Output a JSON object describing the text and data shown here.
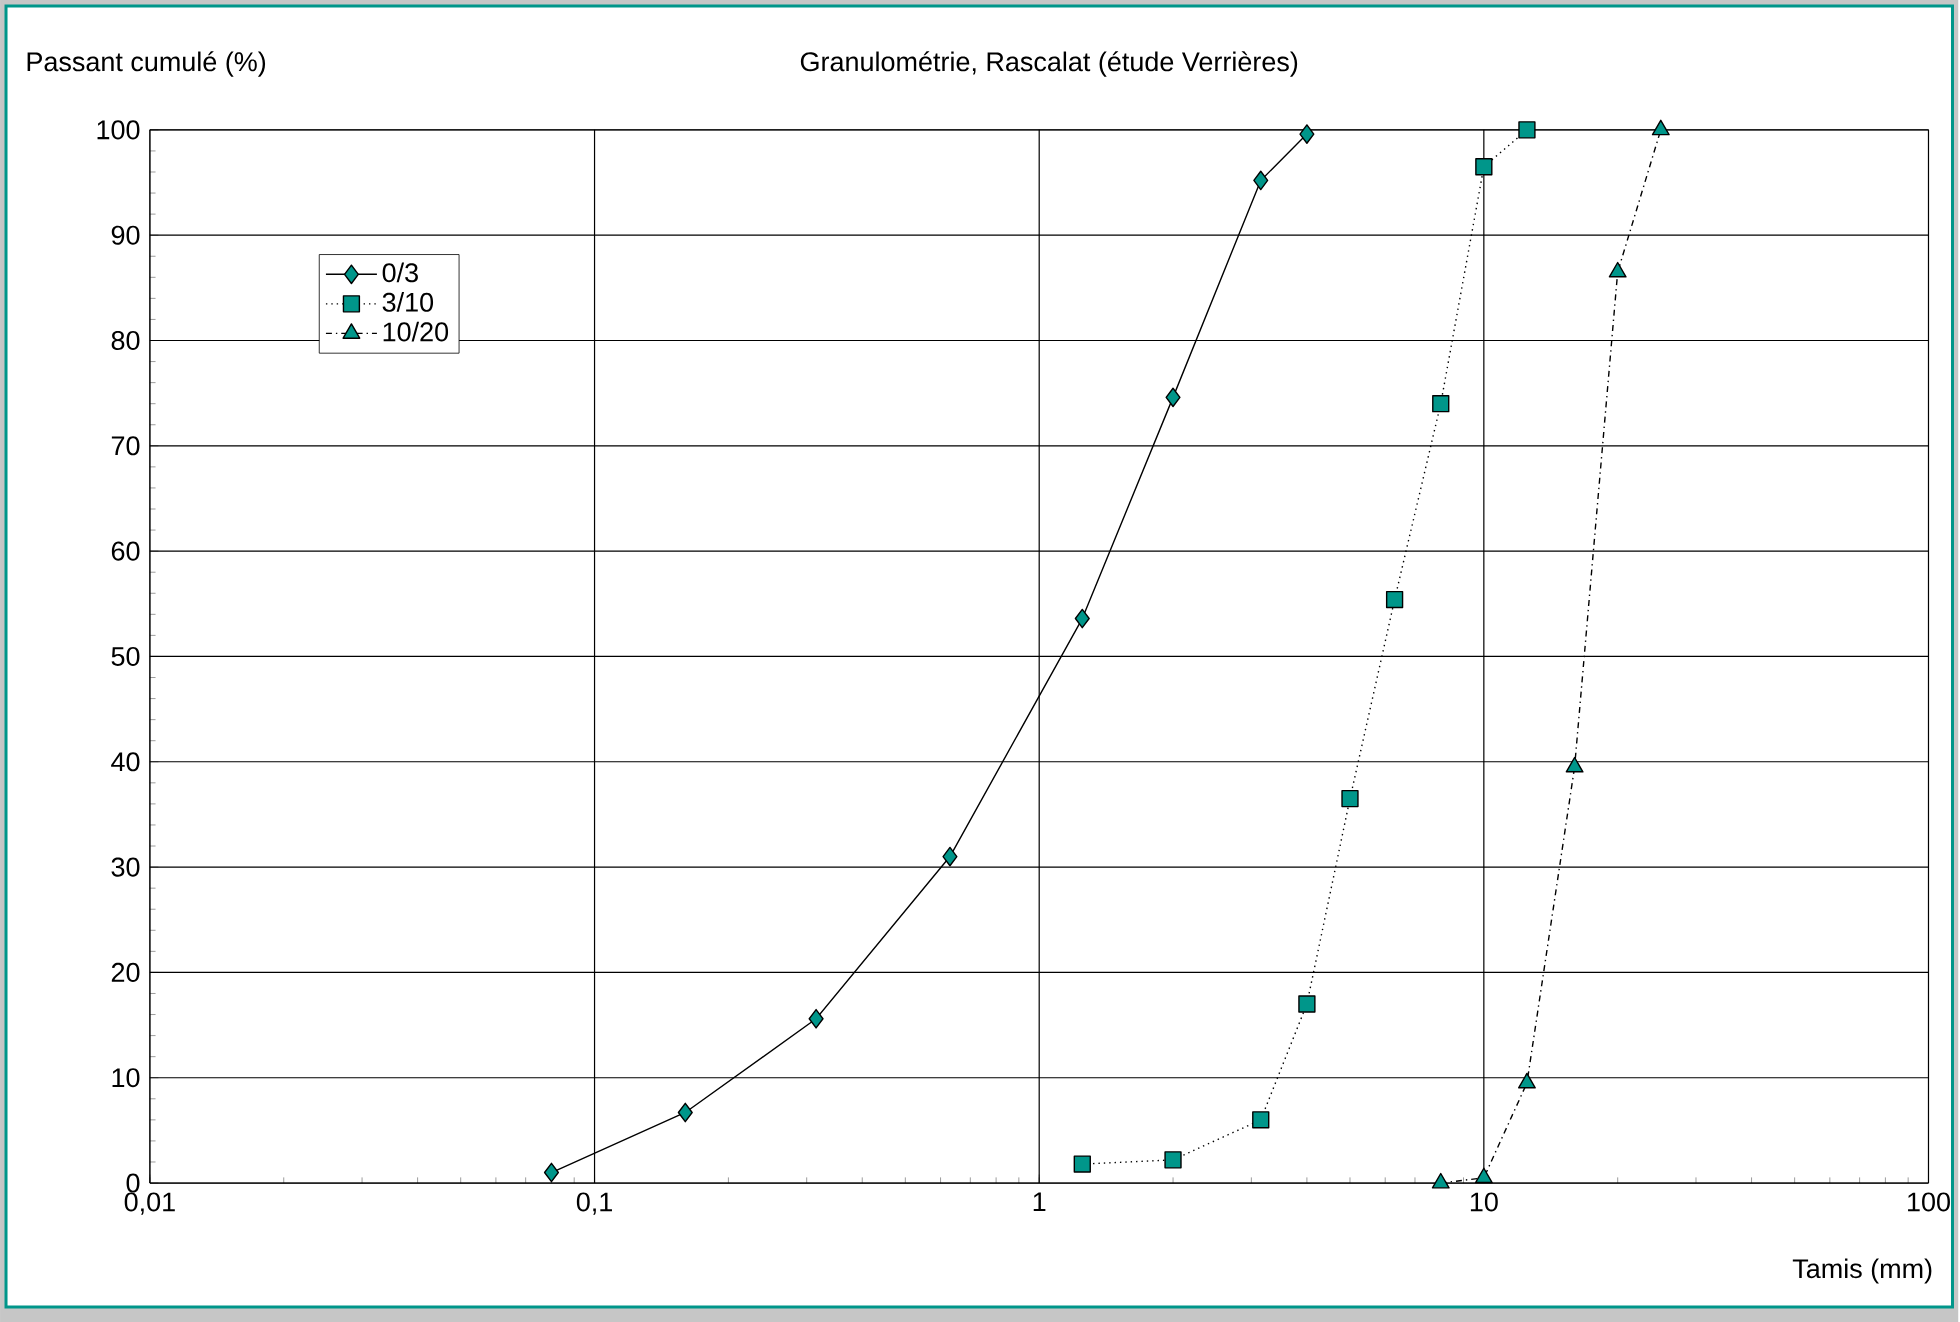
{
  "chart_data": {
    "type": "line",
    "title": "Granulométrie, Rascalat (étude Verrières)",
    "xlabel": "Tamis (mm)",
    "ylabel": "Passant cumulé (%)",
    "log": "x",
    "xlim": [
      0.01,
      100
    ],
    "ylim": [
      0,
      100
    ],
    "xticks": [
      {
        "value": 0.01,
        "label": "0,01"
      },
      {
        "value": 0.1,
        "label": "0,1"
      },
      1,
      10,
      100
    ],
    "yticks": [
      0,
      10,
      20,
      30,
      40,
      50,
      60,
      70,
      80,
      90,
      100
    ],
    "grid": true,
    "legend": "top left",
    "series": [
      {
        "name": "0/3",
        "color": "#00968a",
        "marker": "diamond",
        "line_style": "solid",
        "x": [
          0.08,
          0.16,
          0.315,
          0.63,
          1.25,
          2,
          3.15,
          4
        ],
        "values": [
          1,
          6.7,
          15.6,
          31,
          53.6,
          74.6,
          95.2,
          99.6
        ]
      },
      {
        "name": "3/10",
        "color": "#00968a",
        "marker": "square",
        "line_style": "dotted",
        "x": [
          1.25,
          2,
          3.15,
          4,
          5,
          6.3,
          8,
          10,
          12.5
        ],
        "values": [
          1.8,
          2.2,
          6,
          17,
          36.5,
          55.4,
          74,
          96.5,
          100
        ]
      },
      {
        "name": "10/20",
        "color": "#00968a",
        "marker": "triangle",
        "line_style": "dashdot",
        "x": [
          8,
          10,
          12.5,
          16,
          20,
          25
        ],
        "values": [
          0,
          0.5,
          9.5,
          39.5,
          86.5,
          100
        ]
      }
    ]
  }
}
